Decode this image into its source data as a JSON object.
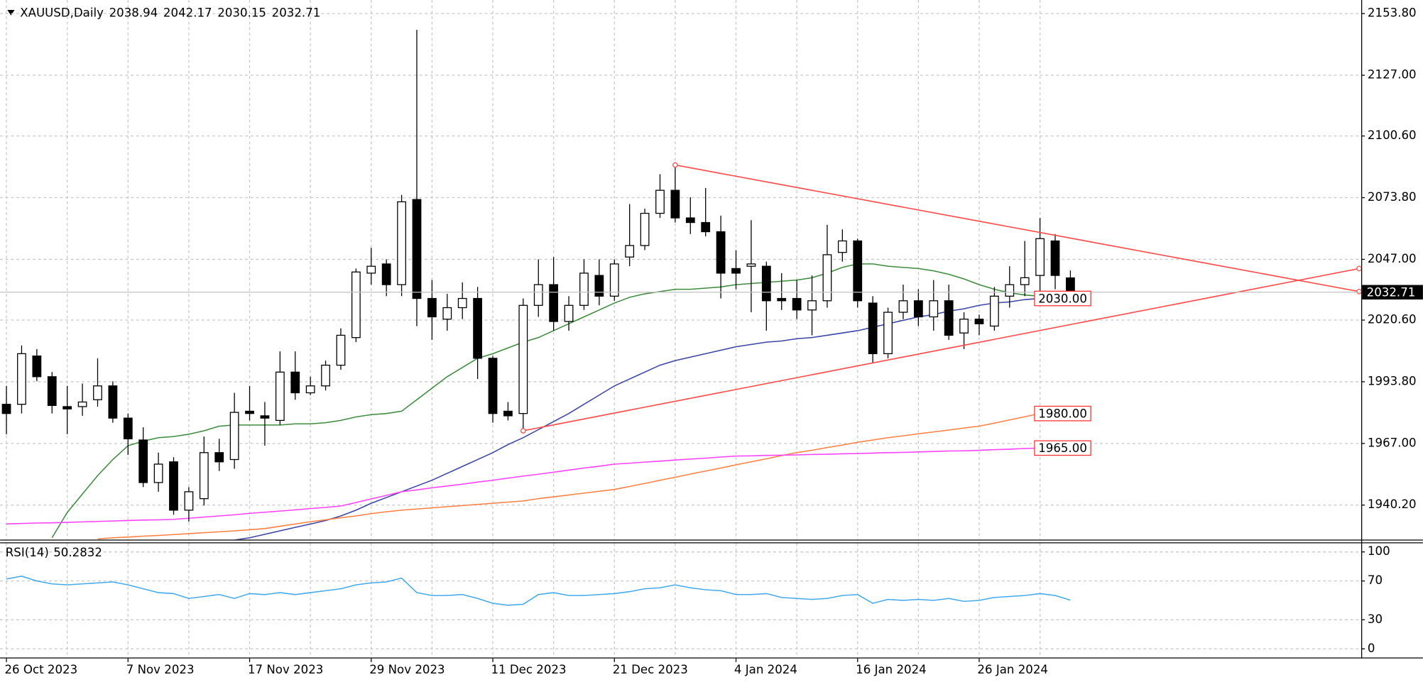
{
  "chart_data": [
    {
      "type": "candlestick",
      "symbol": "XAUUSD,Daily",
      "categories": [
        "26 Oct 2023",
        null,
        null,
        null,
        null,
        null,
        null,
        null,
        "7 Nov 2023",
        null,
        null,
        null,
        null,
        null,
        null,
        null,
        "17 Nov 2023",
        null,
        null,
        null,
        null,
        null,
        null,
        null,
        "29 Nov 2023",
        null,
        null,
        null,
        null,
        null,
        null,
        null,
        "11 Dec 2023",
        null,
        null,
        null,
        null,
        null,
        null,
        null,
        "21 Dec 2023",
        null,
        null,
        null,
        null,
        null,
        null,
        null,
        "4 Jan 2024",
        null,
        null,
        null,
        null,
        null,
        null,
        null,
        "16 Jan 2024",
        null,
        null,
        null,
        null,
        null,
        null,
        null,
        "26 Jan 2024",
        null,
        null,
        null,
        null,
        null,
        null
      ],
      "open": [
        1984,
        1984,
        2005,
        1996,
        1983,
        1983,
        1986,
        1992,
        1978,
        1968.5,
        1950,
        1959,
        1938,
        1943,
        1963,
        1960,
        1981,
        1979,
        1977,
        1998,
        1989,
        1992,
        2001,
        2013,
        2041,
        2045,
        2036,
        2073,
        2030,
        2021,
        2026,
        2030,
        2004,
        1981,
        1980,
        2027,
        2036,
        2020,
        2027,
        2040,
        2031,
        2048,
        2053,
        2067,
        2077,
        2065,
        2063,
        2059,
        2043,
        2044,
        2044,
        2030,
        2030,
        2025,
        2029,
        2050,
        2055,
        2028,
        2006,
        2024,
        2029,
        2022,
        2029,
        2015,
        2021,
        2018,
        2031,
        2036,
        2040,
        2055,
        2038.94
      ],
      "high": [
        1992,
        2009.6,
        2008,
        1998,
        1992,
        1993,
        2004,
        1994,
        1980,
        1974,
        1963,
        1961,
        1948,
        1970,
        1969,
        1989,
        1992,
        1985,
        2007,
        2007,
        1996,
        2003,
        2017,
        2043,
        2052,
        2047,
        2075,
        2146.7,
        2038,
        2032,
        2037,
        2035,
        2005,
        1985,
        2030,
        2047,
        2048,
        2031,
        2047,
        2047,
        2047,
        2071,
        2069,
        2084,
        2088,
        2074,
        2078,
        2066,
        2051,
        2064,
        2046,
        2041,
        2038,
        2040,
        2062,
        2060,
        2056,
        2031,
        2026,
        2036,
        2034,
        2038,
        2036,
        2024,
        2023,
        2035,
        2044,
        2055,
        2065,
        2058,
        2042.17
      ],
      "low": [
        1971,
        1980,
        1994,
        1980,
        1971,
        1979,
        1983,
        1976,
        1962,
        1948,
        1946,
        1936,
        1933,
        1940,
        1955,
        1956,
        1977,
        1966,
        1975,
        1986,
        1988,
        1990,
        1999,
        2011,
        2036,
        2031,
        2031,
        2018,
        2012,
        2016,
        2021,
        1995,
        1976,
        1977,
        1972.5,
        2022,
        2016,
        2016,
        2025,
        2027,
        2029,
        2044,
        2051,
        2065,
        2063,
        2058,
        2057,
        2030,
        2034,
        2024,
        2016,
        2025,
        2021,
        2014,
        2026,
        2046,
        2026,
        2002,
        2004,
        2021,
        2018,
        2016,
        2012,
        2008,
        2014,
        2016,
        2026,
        2031,
        2031,
        2034,
        2030.15
      ],
      "close": [
        1980,
        2006,
        1996,
        1983.5,
        1982,
        1985,
        1992,
        1978,
        1969,
        1950,
        1958,
        1938,
        1946,
        1963,
        1959,
        1980.5,
        1980,
        1978,
        1998,
        1989,
        1992,
        2001,
        2014,
        2041.5,
        2044,
        2036,
        2072,
        2030,
        2022,
        2026,
        2030,
        2004,
        1980,
        1979,
        2027,
        2036,
        2020,
        2027,
        2041,
        2031,
        2045,
        2053,
        2067,
        2077,
        2065,
        2063,
        2059,
        2041,
        2041,
        2045,
        2029,
        2029,
        2025,
        2029,
        2049,
        2055,
        2029,
        2006,
        2024,
        2029,
        2022,
        2029,
        2014,
        2021,
        2019,
        2031,
        2036,
        2039,
        2056,
        2040,
        2032.71
      ],
      "bull_color": "#ffffff",
      "bear_color": "#000000",
      "moving_averages": [
        {
          "color": "#3c8c3c",
          "values": [
            null,
            null,
            null,
            1926,
            1937,
            1945,
            1953,
            1960,
            1966,
            1968,
            1969.5,
            1970,
            1971,
            1972.5,
            1974.5,
            1975,
            1975,
            1975,
            1975,
            1975.5,
            1975.5,
            1976,
            1977,
            1978.5,
            1979.5,
            1980,
            1981,
            1986,
            1991,
            1996,
            2000,
            2004,
            2006,
            2008.5,
            2011,
            2013,
            2016,
            2019,
            2022,
            2025,
            2028,
            2030.5,
            2032,
            2033,
            2034,
            2034,
            2034.5,
            2035,
            2036,
            2036.5,
            2037,
            2037.5,
            2038,
            2039,
            2041,
            2043.5,
            2045,
            2045,
            2044,
            2043.5,
            2043,
            2042,
            2040.5,
            2038.5,
            2036,
            2034,
            2032.5,
            2031.5,
            2031,
            2031.5,
            2033
          ]
        },
        {
          "color": "#3a45a8",
          "end_label": "2030.00",
          "values": [
            null,
            null,
            null,
            null,
            null,
            null,
            null,
            null,
            null,
            null,
            null,
            null,
            null,
            null,
            null,
            1925,
            1926,
            1927.5,
            1929,
            1930.5,
            1932,
            1933.5,
            1935.5,
            1938,
            1941,
            1943.5,
            1946,
            1948.5,
            1951,
            1954,
            1957,
            1960,
            1963,
            1966.5,
            1969.5,
            1973,
            1976.5,
            1980,
            1984,
            1988,
            1992,
            1995,
            1998,
            2001,
            2003,
            2004.5,
            2006,
            2007.5,
            2009,
            2010,
            2011,
            2011.5,
            2012.5,
            2013,
            2014,
            2015,
            2016,
            2017.5,
            2019,
            2020.5,
            2022,
            2023,
            2024.5,
            2025.5,
            2027,
            2028,
            2028.5,
            2029.5,
            2030,
            null,
            null
          ]
        },
        {
          "color": "#ff7f40",
          "end_label": "1980.00",
          "values": [
            null,
            null,
            null,
            null,
            null,
            null,
            1925.5,
            1926,
            1926.3,
            1926.7,
            1927,
            1927.4,
            1927.8,
            1928.2,
            1928.6,
            1929,
            1929.5,
            1930,
            1931,
            1932,
            1933,
            1933.8,
            1934.7,
            1935.5,
            1936.5,
            1937.3,
            1938,
            1938.5,
            1939,
            1939.5,
            1940,
            1940.5,
            1941,
            1941.5,
            1942,
            1943,
            1943.8,
            1944.6,
            1945.4,
            1946.2,
            1947,
            1948.3,
            1949.6,
            1951,
            1952.3,
            1953.7,
            1955,
            1956.3,
            1957.7,
            1959,
            1960.3,
            1961.7,
            1963,
            1964,
            1965.2,
            1966.3,
            1967.5,
            1968.5,
            1969.5,
            1970.3,
            1971.2,
            1972,
            1972.8,
            1973.7,
            1974.5,
            1975.8,
            1977.2,
            1978.6,
            1980,
            null,
            null
          ]
        },
        {
          "color": "#ff40ff",
          "end_label": "1965.00",
          "values": [
            1932,
            1932.2,
            1932.4,
            1932.5,
            1932.7,
            1932.9,
            1933.1,
            1933.3,
            1933.5,
            1933.7,
            1933.8,
            1934,
            1934.5,
            1935,
            1935.5,
            1936,
            1936.6,
            1937.1,
            1937.6,
            1938.1,
            1938.7,
            1939.2,
            1939.8,
            1941.3,
            1942.9,
            1944.4,
            1946,
            1946.8,
            1947.7,
            1948.5,
            1949.3,
            1950.2,
            1951,
            1951.9,
            1952.8,
            1953.6,
            1954.5,
            1955.4,
            1956.3,
            1957.1,
            1958,
            1958.4,
            1958.9,
            1959.3,
            1959.8,
            1960.2,
            1960.6,
            1961.1,
            1961.5,
            1961.6,
            1961.8,
            1961.9,
            1962,
            1962.2,
            1962.3,
            1962.5,
            1962.6,
            1962.8,
            1963,
            1963.1,
            1963.3,
            1963.5,
            1963.7,
            1963.8,
            1964,
            1964.3,
            1964.5,
            1964.8,
            1965,
            null,
            null
          ]
        }
      ],
      "trendlines": [
        {
          "color": "#ff4d4d",
          "points": [
            [
              44,
              2088
            ],
            [
              89,
              2033
            ]
          ]
        },
        {
          "color": "#ff4d4d",
          "points": [
            [
              34,
              1972.5
            ],
            [
              89,
              2043
            ]
          ]
        }
      ],
      "ylim": [
        1925.2,
        2159.7
      ],
      "yticks": [
        {
          "value": 1940.2,
          "label": "1940.20"
        },
        {
          "value": 1967,
          "label": "1967.00"
        },
        {
          "value": 1993.8,
          "label": "1993.80"
        },
        {
          "value": 2020.6,
          "label": "2020.60"
        },
        {
          "value": 2047,
          "label": "2047.00"
        },
        {
          "value": 2073.8,
          "label": "2073.80"
        },
        {
          "value": 2100.6,
          "label": "2100.60"
        },
        {
          "value": 2127,
          "label": "2127.00"
        },
        {
          "value": 2153.8,
          "label": "2153.80"
        }
      ],
      "grid": true
    },
    {
      "type": "line",
      "title": "RSI(14)",
      "color": "#44aaee",
      "values": [
        72,
        75,
        70,
        67,
        66,
        67,
        68,
        69,
        66,
        62,
        58,
        57,
        52,
        54,
        56,
        52,
        57,
        56,
        58,
        56,
        58,
        60,
        62,
        66,
        68,
        69,
        73,
        58,
        55,
        55,
        56,
        52,
        47,
        45,
        46,
        56,
        58,
        55,
        55,
        56,
        57,
        59,
        62,
        63,
        66,
        63,
        61,
        60,
        56,
        56,
        57,
        53,
        52,
        51,
        52,
        55,
        56,
        47,
        51,
        50,
        51,
        50,
        52,
        49,
        50,
        53,
        54,
        55,
        57,
        55,
        50.2832
      ],
      "ylim": [
        -8,
        108
      ],
      "yticks": [
        0,
        30,
        70,
        100
      ],
      "grid": true
    }
  ]
}
